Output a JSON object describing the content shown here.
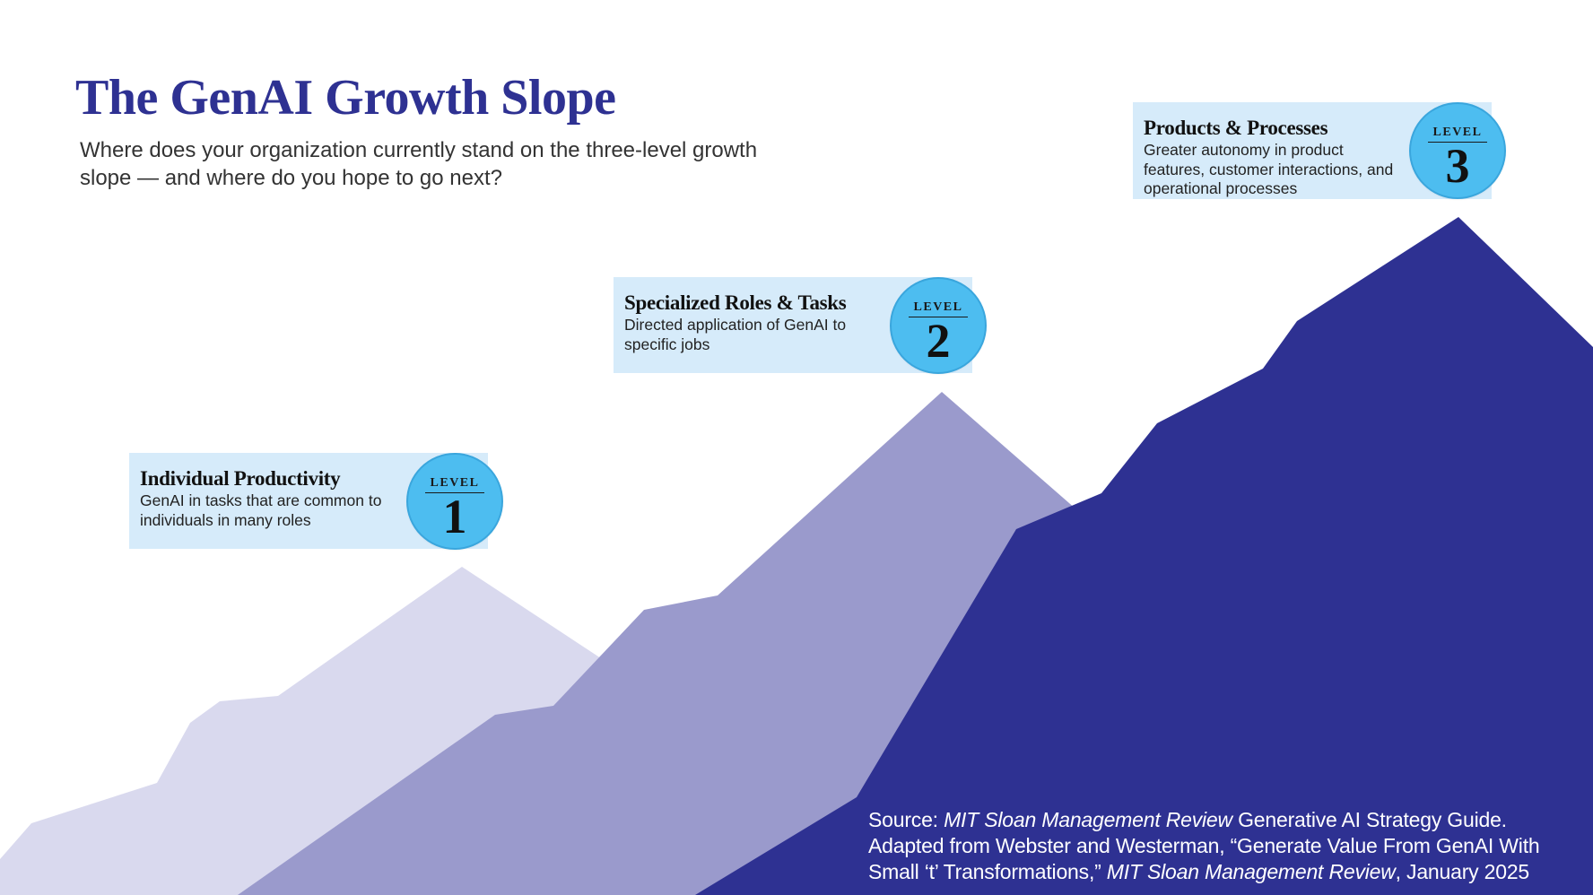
{
  "header": {
    "title": "The GenAI Growth Slope",
    "subtitle": "Where does your organization currently stand on the three-level growth slope — and where do you hope to go next?"
  },
  "levels": [
    {
      "heading": "Individual Productivity",
      "description": "GenAI in tasks that are common to individuals in many roles",
      "badge_label": "LEVEL",
      "badge_number": "1"
    },
    {
      "heading": "Specialized Roles & Tasks",
      "description": "Directed application of GenAI to specific jobs",
      "badge_label": "LEVEL",
      "badge_number": "2"
    },
    {
      "heading": "Products & Processes",
      "description": "Greater autonomy in product features, customer interactions, and operational processes",
      "badge_label": "LEVEL",
      "badge_number": "3"
    }
  ],
  "source": {
    "prefix": "Source: ",
    "publication": "MIT Sloan Management Review",
    "guide": " Generative AI Strategy Guide.",
    "adapted": "Adapted from Webster and Westerman, “Generate Value From GenAI With Small ‘t’ Transformations,” ",
    "publication_2": "MIT Sloan Management Review",
    "date": ", January 2025"
  },
  "colors": {
    "title": "#2e3192",
    "mountain_level_1": "#d9d9ee",
    "mountain_level_2": "#9a9acc",
    "mountain_level_3": "#2e3192",
    "card_background": "#d6ebfa",
    "badge": "#4dbdf0"
  }
}
